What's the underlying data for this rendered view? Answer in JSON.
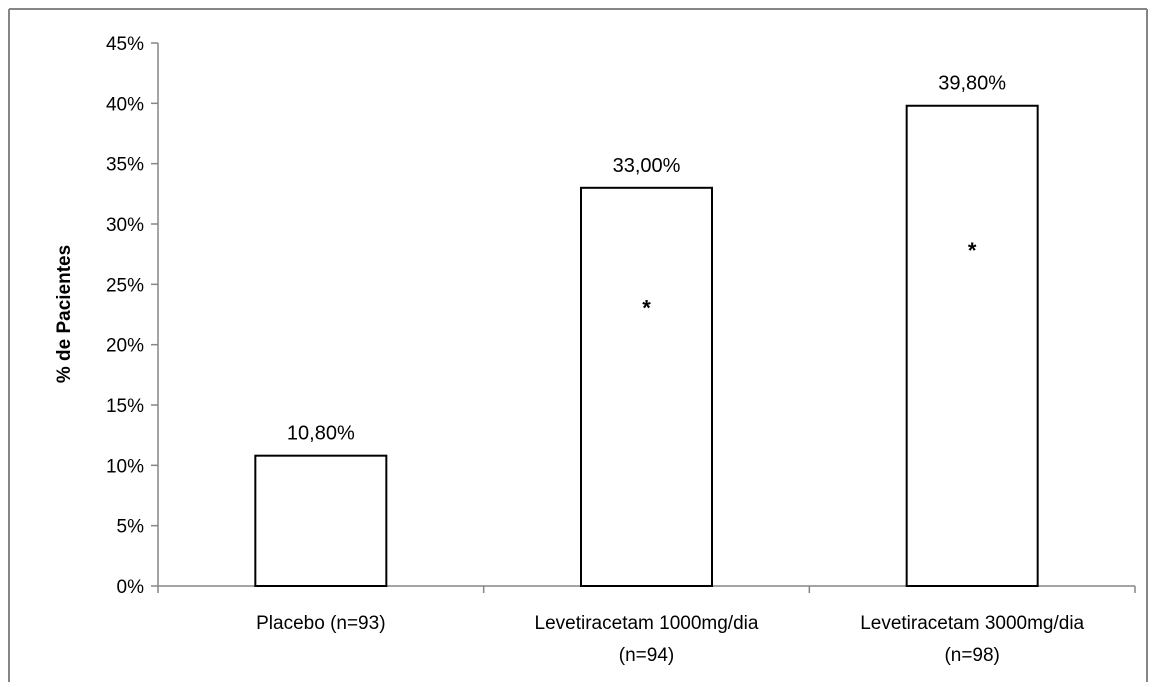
{
  "chart_data": {
    "type": "bar",
    "title": "",
    "xlabel": "",
    "ylabel": "% de Pacientes",
    "ylim": [
      0,
      45
    ],
    "y_ticks": [
      0,
      5,
      10,
      15,
      20,
      25,
      30,
      35,
      40,
      45
    ],
    "y_tick_labels": [
      "0%",
      "5%",
      "10%",
      "15%",
      "20%",
      "25%",
      "30%",
      "35%",
      "40%",
      "45%"
    ],
    "categories": [
      [
        "Placebo (n=93)"
      ],
      [
        "Levetiracetam 1000mg/dia",
        "(n=94)"
      ],
      [
        "Levetiracetam 3000mg/dia",
        "(n=98)"
      ]
    ],
    "values": [
      10.8,
      33.0,
      39.8
    ],
    "data_labels": [
      "10,80%",
      "33,00%",
      "39,80%"
    ],
    "significance_markers": [
      "",
      "*",
      "*"
    ],
    "grid": false,
    "legend": "none",
    "colors": {
      "bar_fill": "#ffffff",
      "bar_stroke": "#000000",
      "axis": "#868686",
      "frame": "#868686"
    }
  }
}
